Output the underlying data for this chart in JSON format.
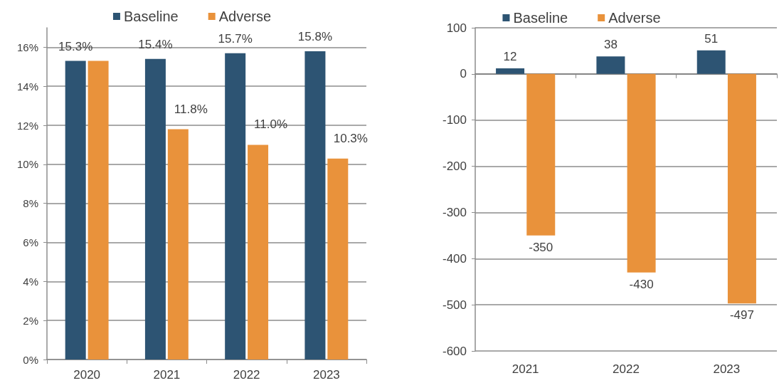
{
  "chart_data": [
    {
      "type": "bar",
      "categories": [
        "2020",
        "2021",
        "2022",
        "2023"
      ],
      "series": [
        {
          "name": "Baseline",
          "color": "#2d5473",
          "values": [
            15.3,
            15.4,
            15.7,
            15.8
          ],
          "value_labels": [
            "15.3%",
            "15.4%",
            "15.7%",
            "15.8%"
          ]
        },
        {
          "name": "Adverse",
          "color": "#e9923b",
          "values": [
            15.3,
            11.8,
            11.0,
            10.3
          ],
          "value_labels": [
            null,
            "11.8%",
            "11.0%",
            "10.3%"
          ]
        }
      ],
      "ylim": [
        0,
        17
      ],
      "yticks": [
        {
          "value": 0,
          "label": "0%"
        },
        {
          "value": 2,
          "label": "2%"
        },
        {
          "value": 4,
          "label": "4%"
        },
        {
          "value": 6,
          "label": "6%"
        },
        {
          "value": 8,
          "label": "8%"
        },
        {
          "value": 10,
          "label": "10%"
        },
        {
          "value": 12,
          "label": "12%"
        },
        {
          "value": 14,
          "label": "14%"
        },
        {
          "value": 16,
          "label": "16%"
        }
      ],
      "grid": "y",
      "legend": "top"
    },
    {
      "type": "bar",
      "categories": [
        "2021",
        "2022",
        "2023"
      ],
      "series": [
        {
          "name": "Baseline",
          "color": "#2d5473",
          "values": [
            12,
            38,
            51
          ]
        },
        {
          "name": "Adverse",
          "color": "#e9923b",
          "values": [
            -350,
            -430,
            -497
          ]
        }
      ],
      "ylim": [
        -600,
        100
      ],
      "yticks": [
        -600,
        -500,
        -400,
        -300,
        -200,
        -100,
        0,
        100
      ],
      "grid": "y",
      "legend": "top",
      "data_labels": true
    }
  ]
}
